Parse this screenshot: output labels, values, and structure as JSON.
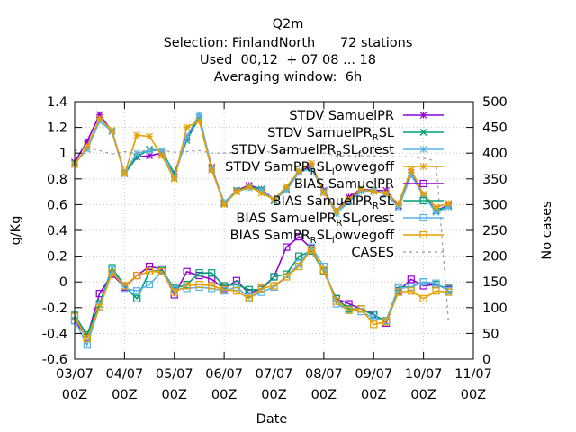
{
  "chart_data": {
    "type": "line",
    "title_lines": [
      "Q2m",
      "Selection: FinlandNorth      72 stations",
      "Used  00,12  + 07 08 ... 18",
      "Averaging window:  6h"
    ],
    "xlabel": "Date",
    "ylabel": "g/Kg",
    "y2label": "No cases",
    "ylim": [
      -0.6,
      1.4
    ],
    "y2lim": [
      0,
      500
    ],
    "yticks": [
      "-0.6",
      "-0.4",
      "-0.2",
      "0",
      "0.2",
      "0.4",
      "0.6",
      "0.8",
      "1",
      "1.2",
      "1.4"
    ],
    "y2ticks": [
      "0",
      "50",
      "100",
      "150",
      "200",
      "250",
      "300",
      "350",
      "400",
      "450",
      "500"
    ],
    "xlim": [
      0,
      192
    ],
    "xticks": [
      {
        "x": 0,
        "l1": "03/07",
        "l2": "00Z"
      },
      {
        "x": 24,
        "l1": "04/07",
        "l2": "00Z"
      },
      {
        "x": 48,
        "l1": "05/07",
        "l2": "00Z"
      },
      {
        "x": 72,
        "l1": "06/07",
        "l2": "00Z"
      },
      {
        "x": 96,
        "l1": "07/07",
        "l2": "00Z"
      },
      {
        "x": 120,
        "l1": "08/07",
        "l2": "00Z"
      },
      {
        "x": 144,
        "l1": "09/07",
        "l2": "00Z"
      },
      {
        "x": 168,
        "l1": "10/07",
        "l2": "00Z"
      },
      {
        "x": 192,
        "l1": "11/07",
        "l2": "00Z"
      }
    ],
    "grid": true,
    "legend_position": "top-right",
    "x": [
      0,
      6,
      12,
      18,
      24,
      30,
      36,
      42,
      48,
      54,
      60,
      66,
      72,
      78,
      84,
      90,
      96,
      102,
      108,
      114,
      120,
      126,
      132,
      138,
      144,
      150,
      156,
      162,
      168,
      174,
      180
    ],
    "series": [
      {
        "name": "STDV SamuelPR",
        "color": "#9400d3",
        "marker": "star",
        "axis": "y",
        "values": [
          0.93,
          1.09,
          1.3,
          1.17,
          0.84,
          0.97,
          0.98,
          1.0,
          0.84,
          1.12,
          1.28,
          0.89,
          0.61,
          0.71,
          0.75,
          0.72,
          0.64,
          0.72,
          0.86,
          0.9,
          0.71,
          0.55,
          0.66,
          0.72,
          0.71,
          0.71,
          0.59,
          0.85,
          0.68,
          0.55,
          0.6
        ]
      },
      {
        "name": "STDV SamuelPR_RSL",
        "color": "#009e73",
        "marker": "x",
        "axis": "y",
        "values": [
          0.92,
          1.03,
          1.25,
          1.17,
          0.84,
          0.97,
          1.03,
          1.02,
          0.84,
          1.1,
          1.28,
          0.87,
          0.61,
          0.71,
          0.74,
          0.72,
          0.63,
          0.72,
          0.86,
          0.88,
          0.7,
          0.55,
          0.63,
          0.71,
          0.71,
          0.68,
          0.58,
          0.83,
          0.67,
          0.55,
          0.59
        ]
      },
      {
        "name": "STDV SamuelPR_RSL_forest",
        "color": "#56b4e9",
        "marker": "star",
        "axis": "y",
        "values": [
          0.92,
          1.03,
          1.25,
          1.17,
          0.85,
          1.0,
          1.02,
          1.02,
          0.81,
          1.13,
          1.3,
          0.88,
          0.62,
          0.7,
          0.73,
          0.71,
          0.64,
          0.71,
          0.85,
          0.88,
          0.7,
          0.53,
          0.62,
          0.7,
          0.71,
          0.68,
          0.58,
          0.83,
          0.67,
          0.54,
          0.58
        ]
      },
      {
        "name": "STDV SamPR_RSL_lowvegoff",
        "color": "#e69f00",
        "marker": "star",
        "axis": "y",
        "values": [
          0.91,
          1.05,
          1.27,
          1.18,
          0.84,
          1.14,
          1.13,
          0.98,
          0.8,
          1.2,
          1.25,
          0.87,
          0.6,
          0.7,
          0.74,
          0.69,
          0.64,
          0.74,
          0.86,
          0.92,
          0.69,
          0.55,
          0.64,
          0.72,
          0.7,
          0.69,
          0.61,
          0.87,
          0.68,
          0.58,
          0.61
        ]
      },
      {
        "name": "BIAS SamuelPR",
        "color": "#9400d3",
        "marker": "square",
        "axis": "y",
        "values": [
          -0.3,
          -0.43,
          -0.09,
          0.06,
          -0.04,
          0.05,
          0.12,
          0.1,
          -0.1,
          0.08,
          0.05,
          0.02,
          -0.05,
          0.01,
          -0.09,
          -0.05,
          0.04,
          0.27,
          0.35,
          0.26,
          0.08,
          -0.13,
          -0.17,
          -0.21,
          -0.25,
          -0.32,
          -0.07,
          0.02,
          -0.03,
          -0.02,
          -0.06
        ]
      },
      {
        "name": "BIAS SamuelPR_RSL",
        "color": "#009e73",
        "marker": "square",
        "axis": "y",
        "values": [
          -0.26,
          -0.41,
          -0.17,
          0.11,
          -0.03,
          -0.13,
          0.08,
          0.09,
          -0.05,
          -0.02,
          0.07,
          0.07,
          -0.03,
          -0.02,
          -0.06,
          -0.06,
          0.04,
          0.06,
          0.2,
          0.24,
          0.08,
          -0.13,
          -0.21,
          -0.21,
          -0.26,
          -0.3,
          -0.04,
          -0.04,
          0.0,
          -0.02,
          -0.05
        ]
      },
      {
        "name": "BIAS SamuelPR_RSL_forest",
        "color": "#56b4e9",
        "marker": "square",
        "axis": "y",
        "values": [
          -0.3,
          -0.49,
          -0.19,
          0.09,
          -0.05,
          -0.07,
          -0.02,
          0.08,
          -0.06,
          -0.05,
          -0.04,
          -0.05,
          -0.07,
          -0.04,
          -0.12,
          -0.08,
          -0.04,
          0.04,
          0.14,
          0.27,
          0.12,
          -0.17,
          -0.22,
          -0.23,
          -0.28,
          -0.3,
          -0.05,
          -0.04,
          0.0,
          -0.01,
          -0.07
        ]
      },
      {
        "name": "BIAS SamPR_RSL_lowvegoff",
        "color": "#e69f00",
        "marker": "square",
        "axis": "y",
        "values": [
          -0.27,
          -0.44,
          -0.2,
          0.07,
          -0.03,
          0.05,
          0.08,
          0.08,
          -0.08,
          -0.03,
          -0.02,
          -0.03,
          -0.06,
          -0.07,
          -0.13,
          -0.05,
          -0.03,
          0.04,
          0.12,
          0.25,
          0.09,
          -0.15,
          -0.22,
          -0.21,
          -0.33,
          -0.31,
          -0.08,
          -0.07,
          -0.13,
          -0.07,
          -0.08
        ]
      },
      {
        "name": "CASES",
        "color": "#999999",
        "marker": "none",
        "axis": "y2",
        "dashed": true,
        "values": [
          405,
          410,
          405,
          398,
          403,
          400,
          408,
          405,
          402,
          403,
          405,
          400,
          400,
          402,
          405,
          405,
          400,
          405,
          408,
          405,
          400,
          395,
          395,
          395,
          395,
          393,
          393,
          393,
          390,
          385,
          75
        ]
      }
    ]
  }
}
